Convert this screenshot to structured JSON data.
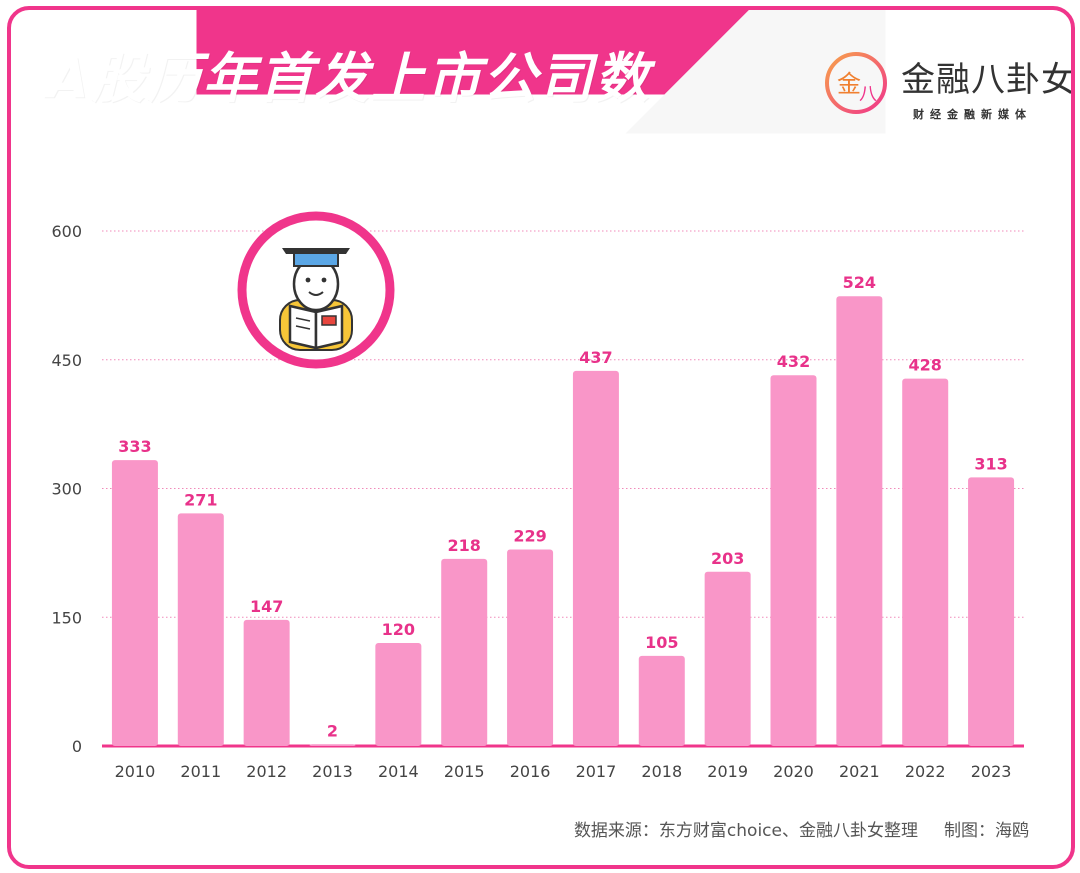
{
  "title": "A股历年首发上市公司数",
  "logo": {
    "main": "金融八卦女",
    "sub": "财经金融新媒体",
    "mark": "金八"
  },
  "source": {
    "text": "数据来源：东方财富choice、金融八卦女整理",
    "author": "制图：海鸥"
  },
  "colors": {
    "accent": "#f0358b",
    "bar": "#f996c8",
    "label": "#e8328a",
    "grid": "#f08aba",
    "axis_text": "#444444"
  },
  "icon": "graduate-reading-icon",
  "chart_data": {
    "type": "bar",
    "categories": [
      "2010",
      "2011",
      "2012",
      "2013",
      "2014",
      "2015",
      "2016",
      "2017",
      "2018",
      "2019",
      "2020",
      "2021",
      "2022",
      "2023"
    ],
    "values": [
      333,
      271,
      147,
      2,
      120,
      218,
      229,
      437,
      105,
      203,
      432,
      524,
      428,
      313
    ],
    "y_ticks": [
      0,
      150,
      300,
      450,
      600
    ],
    "ylim": [
      0,
      600
    ],
    "title": "",
    "xlabel": "",
    "ylabel": "",
    "grid": true,
    "data_labels": true
  }
}
